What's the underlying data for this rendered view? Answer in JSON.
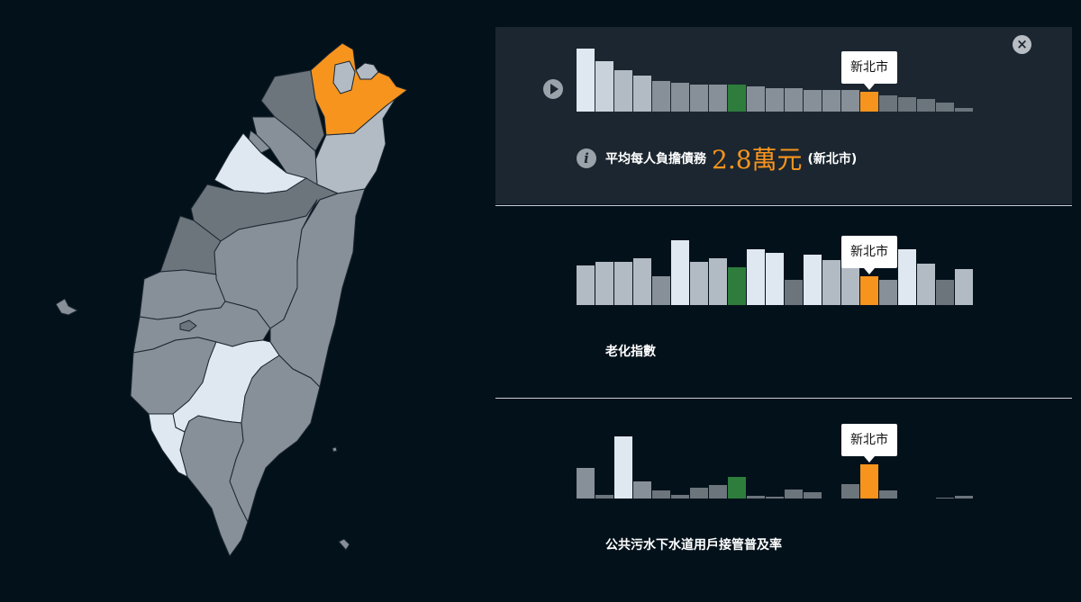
{
  "map": {
    "colors": {
      "highlight": "#f7941d",
      "stroke": "#1b2630"
    }
  },
  "controls": {
    "close_symbol": "×"
  },
  "panels": [
    {
      "tooltip": "新北市",
      "info": {
        "label": "平均每人負擔債務",
        "value": "2.8萬元",
        "place": "(新北市)"
      }
    },
    {
      "tooltip": "新北市",
      "title": "老化指數"
    },
    {
      "tooltip": "新北市",
      "title": "公共污水下水道用戶接管普及率"
    }
  ],
  "chart_data": [
    {
      "type": "bar",
      "highlight_index": 15,
      "values": [
        35,
        28,
        23,
        20,
        17,
        16,
        15,
        15,
        15,
        14,
        13,
        13,
        12,
        12,
        12,
        11,
        9,
        8,
        7,
        5,
        2
      ],
      "colors": [
        "#dfe8f0",
        "#c9d2da",
        "#b2bbc3",
        "#b2bbc3",
        "#878f98",
        "#878f98",
        "#878f98",
        "#878f98",
        "#2e7d3c",
        "#878f98",
        "#878f98",
        "#878f98",
        "#878f98",
        "#878f98",
        "#878f98",
        "#f7941d",
        "#6c747c",
        "#6c747c",
        "#6c747c",
        "#6c747c",
        "#6c747c"
      ]
    },
    {
      "type": "bar",
      "highlight_index": 15,
      "values": [
        22,
        24,
        24,
        26,
        16,
        36,
        24,
        26,
        21,
        31,
        29,
        14,
        28,
        25,
        25,
        16,
        14,
        31,
        23,
        14,
        20
      ],
      "colors": [
        "#b2bbc3",
        "#b2bbc3",
        "#b2bbc3",
        "#b2bbc3",
        "#878f98",
        "#dfe8f0",
        "#b2bbc3",
        "#b2bbc3",
        "#2e7d3c",
        "#dfe8f0",
        "#dfe8f0",
        "#6c747c",
        "#dfe8f0",
        "#b2bbc3",
        "#b2bbc3",
        "#f7941d",
        "#878f98",
        "#dfe8f0",
        "#b2bbc3",
        "#6c747c",
        "#b2bbc3"
      ]
    },
    {
      "type": "bar",
      "highlight_index": 15,
      "values": [
        34,
        4,
        69,
        19,
        9,
        4,
        12,
        15,
        24,
        3,
        2,
        10,
        7,
        0,
        16,
        38,
        9,
        0,
        0,
        1,
        3
      ],
      "colors": [
        "#878f98",
        "#6c747c",
        "#dfe8f0",
        "#878f98",
        "#6c747c",
        "#6c747c",
        "#6c747c",
        "#6c747c",
        "#2e7d3c",
        "#6c747c",
        "#6c747c",
        "#6c747c",
        "#6c747c",
        "#6c747c",
        "#6c747c",
        "#f7941d",
        "#6c747c",
        "#6c747c",
        "#6c747c",
        "#6c747c",
        "#6c747c"
      ]
    }
  ]
}
